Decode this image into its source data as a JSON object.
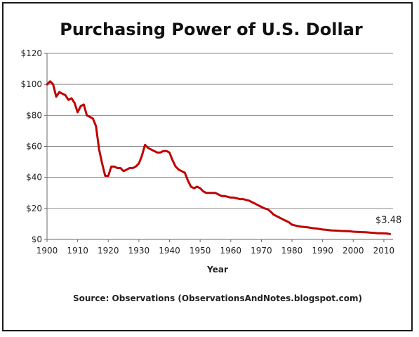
{
  "chart_data": {
    "type": "line",
    "title": "Purchasing Power of U.S. Dollar",
    "xlabel": "Year",
    "ylabel": "",
    "source": "Source: Observations  (ObservationsAndNotes.blogspot.com)",
    "annotation": "$3.48",
    "xlim": [
      1900,
      2013
    ],
    "ylim": [
      0,
      120
    ],
    "x_ticks": [
      1900,
      1910,
      1920,
      1930,
      1940,
      1950,
      1960,
      1970,
      1980,
      1990,
      2000,
      2010
    ],
    "y_ticks": [
      0,
      20,
      40,
      60,
      80,
      100,
      120
    ],
    "y_tick_labels": [
      "$0",
      "$20",
      "$40",
      "$60",
      "$80",
      "$100",
      "$120"
    ],
    "grid": "horizontal",
    "legend": "none",
    "series": [
      {
        "color": "#c00000",
        "x": [
          1900,
          1901,
          1902,
          1903,
          1904,
          1905,
          1906,
          1907,
          1908,
          1909,
          1910,
          1911,
          1912,
          1913,
          1914,
          1915,
          1916,
          1917,
          1918,
          1919,
          1920,
          1921,
          1922,
          1923,
          1924,
          1925,
          1926,
          1927,
          1928,
          1929,
          1930,
          1931,
          1932,
          1933,
          1934,
          1935,
          1936,
          1937,
          1938,
          1939,
          1940,
          1941,
          1942,
          1943,
          1944,
          1945,
          1946,
          1947,
          1948,
          1949,
          1950,
          1951,
          1952,
          1953,
          1954,
          1955,
          1956,
          1957,
          1958,
          1959,
          1960,
          1961,
          1962,
          1963,
          1964,
          1965,
          1966,
          1967,
          1968,
          1969,
          1970,
          1971,
          1972,
          1973,
          1974,
          1975,
          1976,
          1977,
          1978,
          1979,
          1980,
          1981,
          1982,
          1983,
          1984,
          1985,
          1986,
          1987,
          1988,
          1989,
          1990,
          1991,
          1992,
          1993,
          1994,
          1995,
          1996,
          1997,
          1998,
          1999,
          2000,
          2001,
          2002,
          2003,
          2004,
          2005,
          2006,
          2007,
          2008,
          2009,
          2010,
          2011,
          2012
        ],
        "y": [
          100,
          102,
          100,
          92,
          95,
          94,
          93,
          90,
          91,
          88,
          82,
          86,
          87,
          80,
          79,
          78,
          73,
          58,
          49,
          41,
          41,
          47,
          47,
          46,
          46,
          44,
          45,
          46,
          46,
          47,
          49,
          54,
          61,
          59,
          58,
          57,
          56,
          56,
          57,
          57,
          56,
          51,
          47,
          45,
          44,
          43,
          38,
          34,
          33,
          34,
          33,
          31,
          30,
          30,
          30,
          30,
          29,
          28,
          28,
          27.5,
          27,
          27,
          26.5,
          26,
          26,
          25.5,
          25,
          24,
          23,
          22,
          21,
          20,
          19.5,
          18,
          16,
          15,
          14,
          13,
          12,
          11,
          9.5,
          9,
          8.5,
          8.2,
          8,
          7.8,
          7.5,
          7.2,
          7,
          6.7,
          6.4,
          6.2,
          6,
          5.8,
          5.7,
          5.6,
          5.5,
          5.4,
          5.3,
          5.2,
          5,
          4.9,
          4.8,
          4.7,
          4.6,
          4.5,
          4.3,
          4.2,
          4,
          4,
          3.9,
          3.8,
          3.48
        ]
      }
    ]
  }
}
